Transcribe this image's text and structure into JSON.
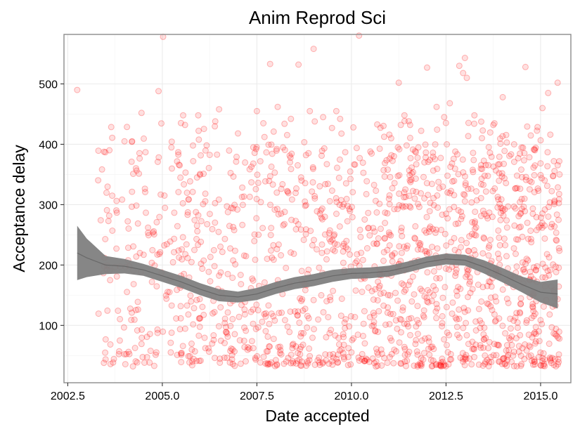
{
  "chart_data": {
    "type": "scatter",
    "title": "Anim Reprod Sci",
    "xlabel": "Date accepted",
    "ylabel": "Acceptance delay",
    "xlim": [
      2002.4,
      2015.8
    ],
    "ylim": [
      5,
      582
    ],
    "x_ticks": [
      2002.5,
      2005.0,
      2007.5,
      2010.0,
      2012.5,
      2015.0
    ],
    "x_tick_labels": [
      "2002.5",
      "2005.0",
      "2007.5",
      "2010.0",
      "2012.5",
      "2015.0"
    ],
    "y_ticks": [
      100,
      200,
      300,
      400,
      500
    ],
    "y_tick_labels": [
      "100",
      "200",
      "300",
      "400",
      "500"
    ],
    "grid": true,
    "legend": "none",
    "colors": {
      "points": "#ff0000",
      "band": "#808080",
      "band_stroke": "#555555",
      "panel_border": "#8c8c8c",
      "grid_major": "#ebebeb",
      "grid_minor": "#f5f5f5"
    },
    "points": [
      [
        2002.75,
        490
      ],
      [
        2005.02,
        578
      ],
      [
        2007.85,
        533
      ],
      [
        2008.6,
        532
      ],
      [
        2009.0,
        558
      ],
      [
        2010.2,
        580
      ],
      [
        2011.25,
        502
      ],
      [
        2011.4,
        448
      ],
      [
        2012.0,
        527
      ],
      [
        2012.85,
        530
      ],
      [
        2012.95,
        518
      ],
      [
        2013.0,
        543
      ],
      [
        2013.05,
        510
      ],
      [
        2014.6,
        528
      ],
      [
        2015.2,
        485
      ],
      [
        2015.45,
        502
      ],
      [
        2015.05,
        460
      ],
      [
        2014.0,
        478
      ],
      [
        2012.6,
        468
      ],
      [
        2012.25,
        462
      ],
      [
        2009.6,
        455
      ],
      [
        2009.25,
        445
      ],
      [
        2008.9,
        455
      ],
      [
        2008.05,
        462
      ],
      [
        2007.5,
        455
      ],
      [
        2006.5,
        458
      ],
      [
        2005.55,
        448
      ],
      [
        2004.9,
        488
      ],
      [
        2004.45,
        452
      ],
      [
        2003.6,
        390
      ],
      [
        2004.0,
        405
      ],
      [
        2004.2,
        405
      ],
      [
        2005.6,
        432
      ],
      [
        2005.95,
        448
      ],
      [
        2006.4,
        438
      ],
      [
        2007.0,
        418
      ],
      [
        2007.7,
        412
      ],
      [
        2008.4,
        442
      ],
      [
        2009.7,
        442
      ],
      [
        2010.05,
        428
      ],
      [
        2010.5,
        388
      ],
      [
        2011.05,
        410
      ],
      [
        2011.55,
        432
      ],
      [
        2012.45,
        445
      ],
      [
        2013.25,
        448
      ],
      [
        2013.75,
        432
      ],
      [
        2014.3,
        400
      ],
      [
        2014.85,
        390
      ],
      [
        2015.35,
        372
      ],
      [
        2015.5,
        350
      ]
    ],
    "smooth_fit": {
      "x": [
        2002.75,
        2003.0,
        2003.5,
        2004.0,
        2004.5,
        2005.0,
        2005.5,
        2006.0,
        2006.5,
        2007.0,
        2007.5,
        2008.0,
        2008.5,
        2009.0,
        2009.5,
        2010.0,
        2010.5,
        2011.0,
        2011.5,
        2012.0,
        2012.5,
        2013.0,
        2013.5,
        2014.0,
        2014.5,
        2015.0,
        2015.45
      ],
      "y": [
        220,
        212,
        200,
        198,
        192,
        182,
        172,
        160,
        150,
        147,
        152,
        162,
        170,
        175,
        182,
        186,
        187,
        190,
        197,
        205,
        210,
        208,
        197,
        183,
        168,
        155,
        152
      ],
      "lower": [
        175,
        180,
        185,
        186,
        182,
        172,
        162,
        150,
        140,
        138,
        142,
        152,
        160,
        165,
        172,
        177,
        178,
        181,
        188,
        196,
        201,
        199,
        186,
        171,
        155,
        138,
        128
      ],
      "upper": [
        265,
        244,
        215,
        210,
        202,
        192,
        182,
        170,
        160,
        156,
        162,
        172,
        180,
        185,
        192,
        195,
        196,
        199,
        206,
        214,
        219,
        217,
        208,
        195,
        181,
        172,
        176
      ]
    }
  }
}
